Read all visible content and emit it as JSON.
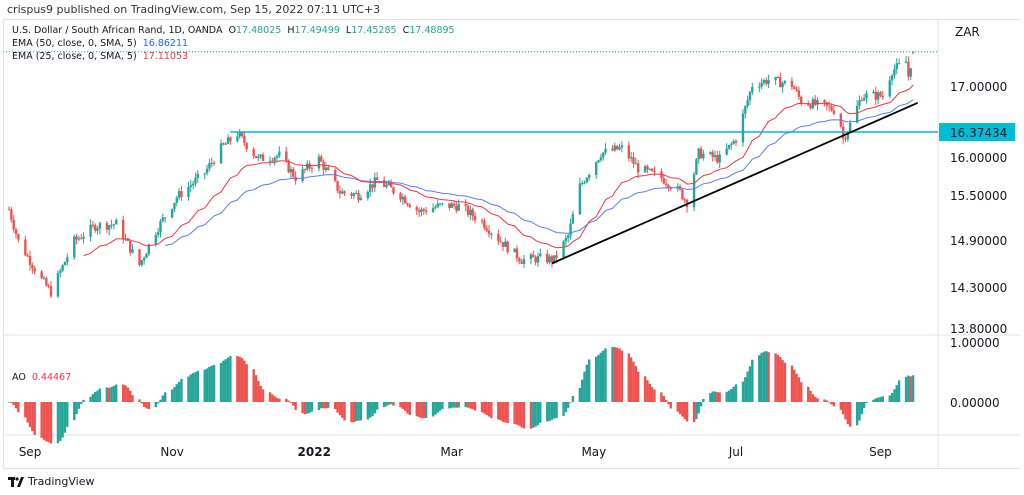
{
  "header": {
    "published": "crispus9 published on TradingView.com, Sep 15, 2022 07:11 UTC+3"
  },
  "legend": {
    "symbol": "U.S. Dollar / South African Rand, 1D, OANDA",
    "o_label": "O",
    "o": "17.48025",
    "h_label": "H",
    "h": "17.49499",
    "l_label": "L",
    "l": "17.45285",
    "c_label": "C",
    "c": "17.48895",
    "ema50": "EMA (50, close, 0, SMA, 5)",
    "ema50_value": "16.86211",
    "ema25": "EMA (25, close, 0, SMA, 5)",
    "ema25_value": "17.11053",
    "ao": "AO",
    "ao_value": "0.44467"
  },
  "footer": {
    "brand": "TradingView"
  },
  "colors": {
    "up": "#26a69a",
    "down": "#ef5350",
    "ema50": "#5b7fe8",
    "ema25": "#f23645",
    "level": "#00bcd4",
    "trend": "#000000"
  },
  "chart_data": [
    {
      "type": "candlestick",
      "currency": "ZAR",
      "scale": "linear",
      "grid": false,
      "y_ticks": [
        "17.00000",
        "16.00000",
        "15.50000",
        "14.90000",
        "14.30000",
        "13.80000"
      ],
      "x_ticks": [
        "Sep",
        "Nov",
        "2022",
        "Mar",
        "May",
        "Jul",
        "Sep"
      ],
      "approx_closes": [
        [
          "2021-08-23",
          15.3
        ],
        [
          "2021-08-27",
          14.86
        ],
        [
          "2021-09-06",
          14.32
        ],
        [
          "2021-09-10",
          14.15
        ],
        [
          "2021-09-20",
          14.86
        ],
        [
          "2021-09-29",
          15.07
        ],
        [
          "2021-10-08",
          15.1
        ],
        [
          "2021-10-18",
          14.53
        ],
        [
          "2021-10-25",
          15.0
        ],
        [
          "2021-11-03",
          15.47
        ],
        [
          "2021-11-15",
          15.81
        ],
        [
          "2021-11-22",
          16.15
        ],
        [
          "2021-11-29",
          16.35
        ],
        [
          "2021-12-08",
          16.0
        ],
        [
          "2021-12-17",
          16.05
        ],
        [
          "2021-12-24",
          15.74
        ],
        [
          "2022-01-03",
          16.0
        ],
        [
          "2022-01-12",
          15.54
        ],
        [
          "2022-01-20",
          15.5
        ],
        [
          "2022-01-28",
          15.7
        ],
        [
          "2022-02-07",
          15.5
        ],
        [
          "2022-02-15",
          15.27
        ],
        [
          "2022-02-24",
          15.35
        ],
        [
          "2022-03-04",
          15.35
        ],
        [
          "2022-03-14",
          15.13
        ],
        [
          "2022-03-22",
          14.86
        ],
        [
          "2022-03-31",
          14.6
        ],
        [
          "2022-04-08",
          14.62
        ],
        [
          "2022-04-14",
          14.6
        ],
        [
          "2022-04-20",
          14.93
        ],
        [
          "2022-04-25",
          15.62
        ],
        [
          "2022-05-04",
          16.08
        ],
        [
          "2022-05-13",
          16.15
        ],
        [
          "2022-05-20",
          15.87
        ],
        [
          "2022-05-30",
          15.74
        ],
        [
          "2022-06-07",
          15.54
        ],
        [
          "2022-06-10",
          15.4
        ],
        [
          "2022-06-15",
          16.08
        ],
        [
          "2022-06-24",
          16.0
        ],
        [
          "2022-07-01",
          16.28
        ],
        [
          "2022-07-08",
          17.03
        ],
        [
          "2022-07-15",
          17.1
        ],
        [
          "2022-07-25",
          17.03
        ],
        [
          "2022-07-29",
          16.8
        ],
        [
          "2022-08-08",
          16.73
        ],
        [
          "2022-08-14",
          16.66
        ],
        [
          "2022-08-16",
          16.28
        ],
        [
          "2022-08-19",
          16.48
        ],
        [
          "2022-08-24",
          16.88
        ],
        [
          "2022-09-02",
          16.88
        ],
        [
          "2022-09-06",
          17.23
        ],
        [
          "2022-09-12",
          17.35
        ],
        [
          "2022-09-13",
          17.15
        ],
        [
          "2022-09-15",
          17.49
        ]
      ],
      "horizontal_level": {
        "value": 16.37434,
        "label": "16.37434",
        "from": "2021-11-26"
      },
      "trendline": {
        "from": [
          "2022-04-13",
          14.55
        ],
        "to": [
          "2022-09-17",
          16.78
        ]
      }
    },
    {
      "type": "bar",
      "indicator": "AO",
      "y_ticks": [
        "1.00000",
        "0.00000"
      ],
      "last": 0.44467
    }
  ]
}
